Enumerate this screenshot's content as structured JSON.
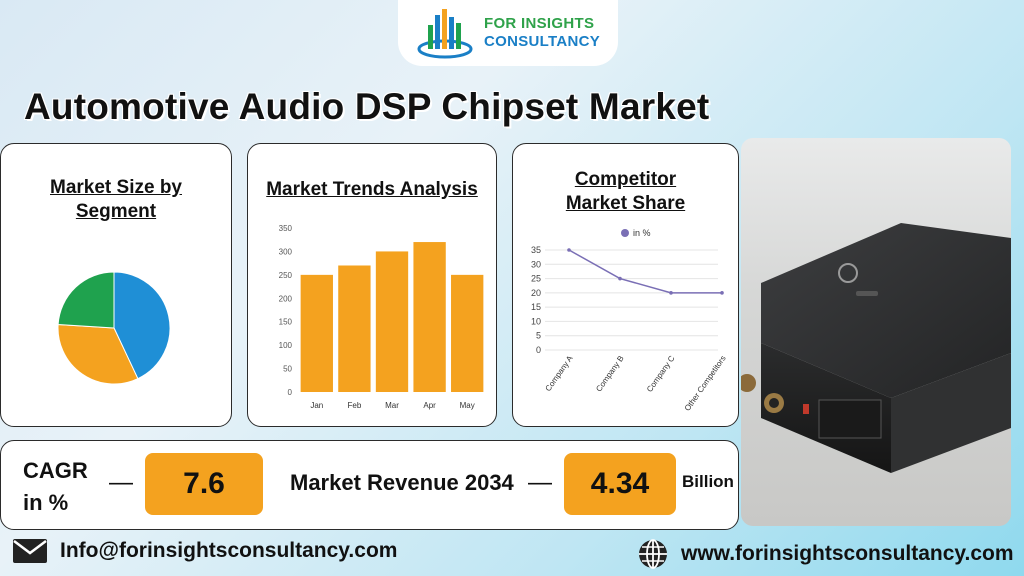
{
  "brand": {
    "line1": "FOR INSIGHTS",
    "line2": "CONSULTANCY",
    "colors": {
      "green": "#2fa24a",
      "blue": "#1a7fc6",
      "orange": "#f4a21f"
    }
  },
  "title": "Automotive Audio DSP Chipset Market",
  "cards": {
    "segment": {
      "title": "Market Size by Segment"
    },
    "trends": {
      "title": "Market Trends Analysis"
    },
    "competitor": {
      "title": "Competitor Market Share"
    }
  },
  "chart_data": [
    {
      "type": "pie",
      "title": "",
      "slices": [
        {
          "label": "",
          "value": 43,
          "color": "#1f8fd6"
        },
        {
          "label": "",
          "value": 33,
          "color": "#f4a21f"
        },
        {
          "label": "",
          "value": 24,
          "color": "#1fa24e"
        }
      ]
    },
    {
      "type": "bar",
      "title": "",
      "categories": [
        "Jan",
        "Feb",
        "Mar",
        "Apr",
        "May"
      ],
      "values": [
        250,
        270,
        300,
        320,
        250
      ],
      "yticks": [
        0,
        50,
        100,
        150,
        200,
        250,
        300,
        350
      ],
      "ylim": [
        0,
        350
      ],
      "color": "#f4a21f"
    },
    {
      "type": "line",
      "title": "",
      "legend": "in %",
      "categories": [
        "Company A",
        "Company B",
        "Company C",
        "Other Competitors"
      ],
      "values": [
        35,
        25,
        20,
        20
      ],
      "yticks": [
        0,
        5,
        10,
        15,
        20,
        25,
        30,
        35
      ],
      "ylim": [
        0,
        35
      ],
      "color": "#7a6fb5"
    }
  ],
  "metrics": {
    "cagr_label_line1": "CAGR",
    "cagr_label_line2": "in %",
    "dash": "—",
    "cagr_value": "7.6",
    "revenue_label": "Market Revenue 2034",
    "revenue_value": "4.34",
    "revenue_unit": "Billion"
  },
  "footer": {
    "email": "Info@forinsightsconsultancy.com",
    "website": "www.forinsightsconsultancy.com",
    "email_icon": "mail-icon",
    "web_icon": "globe-icon"
  }
}
